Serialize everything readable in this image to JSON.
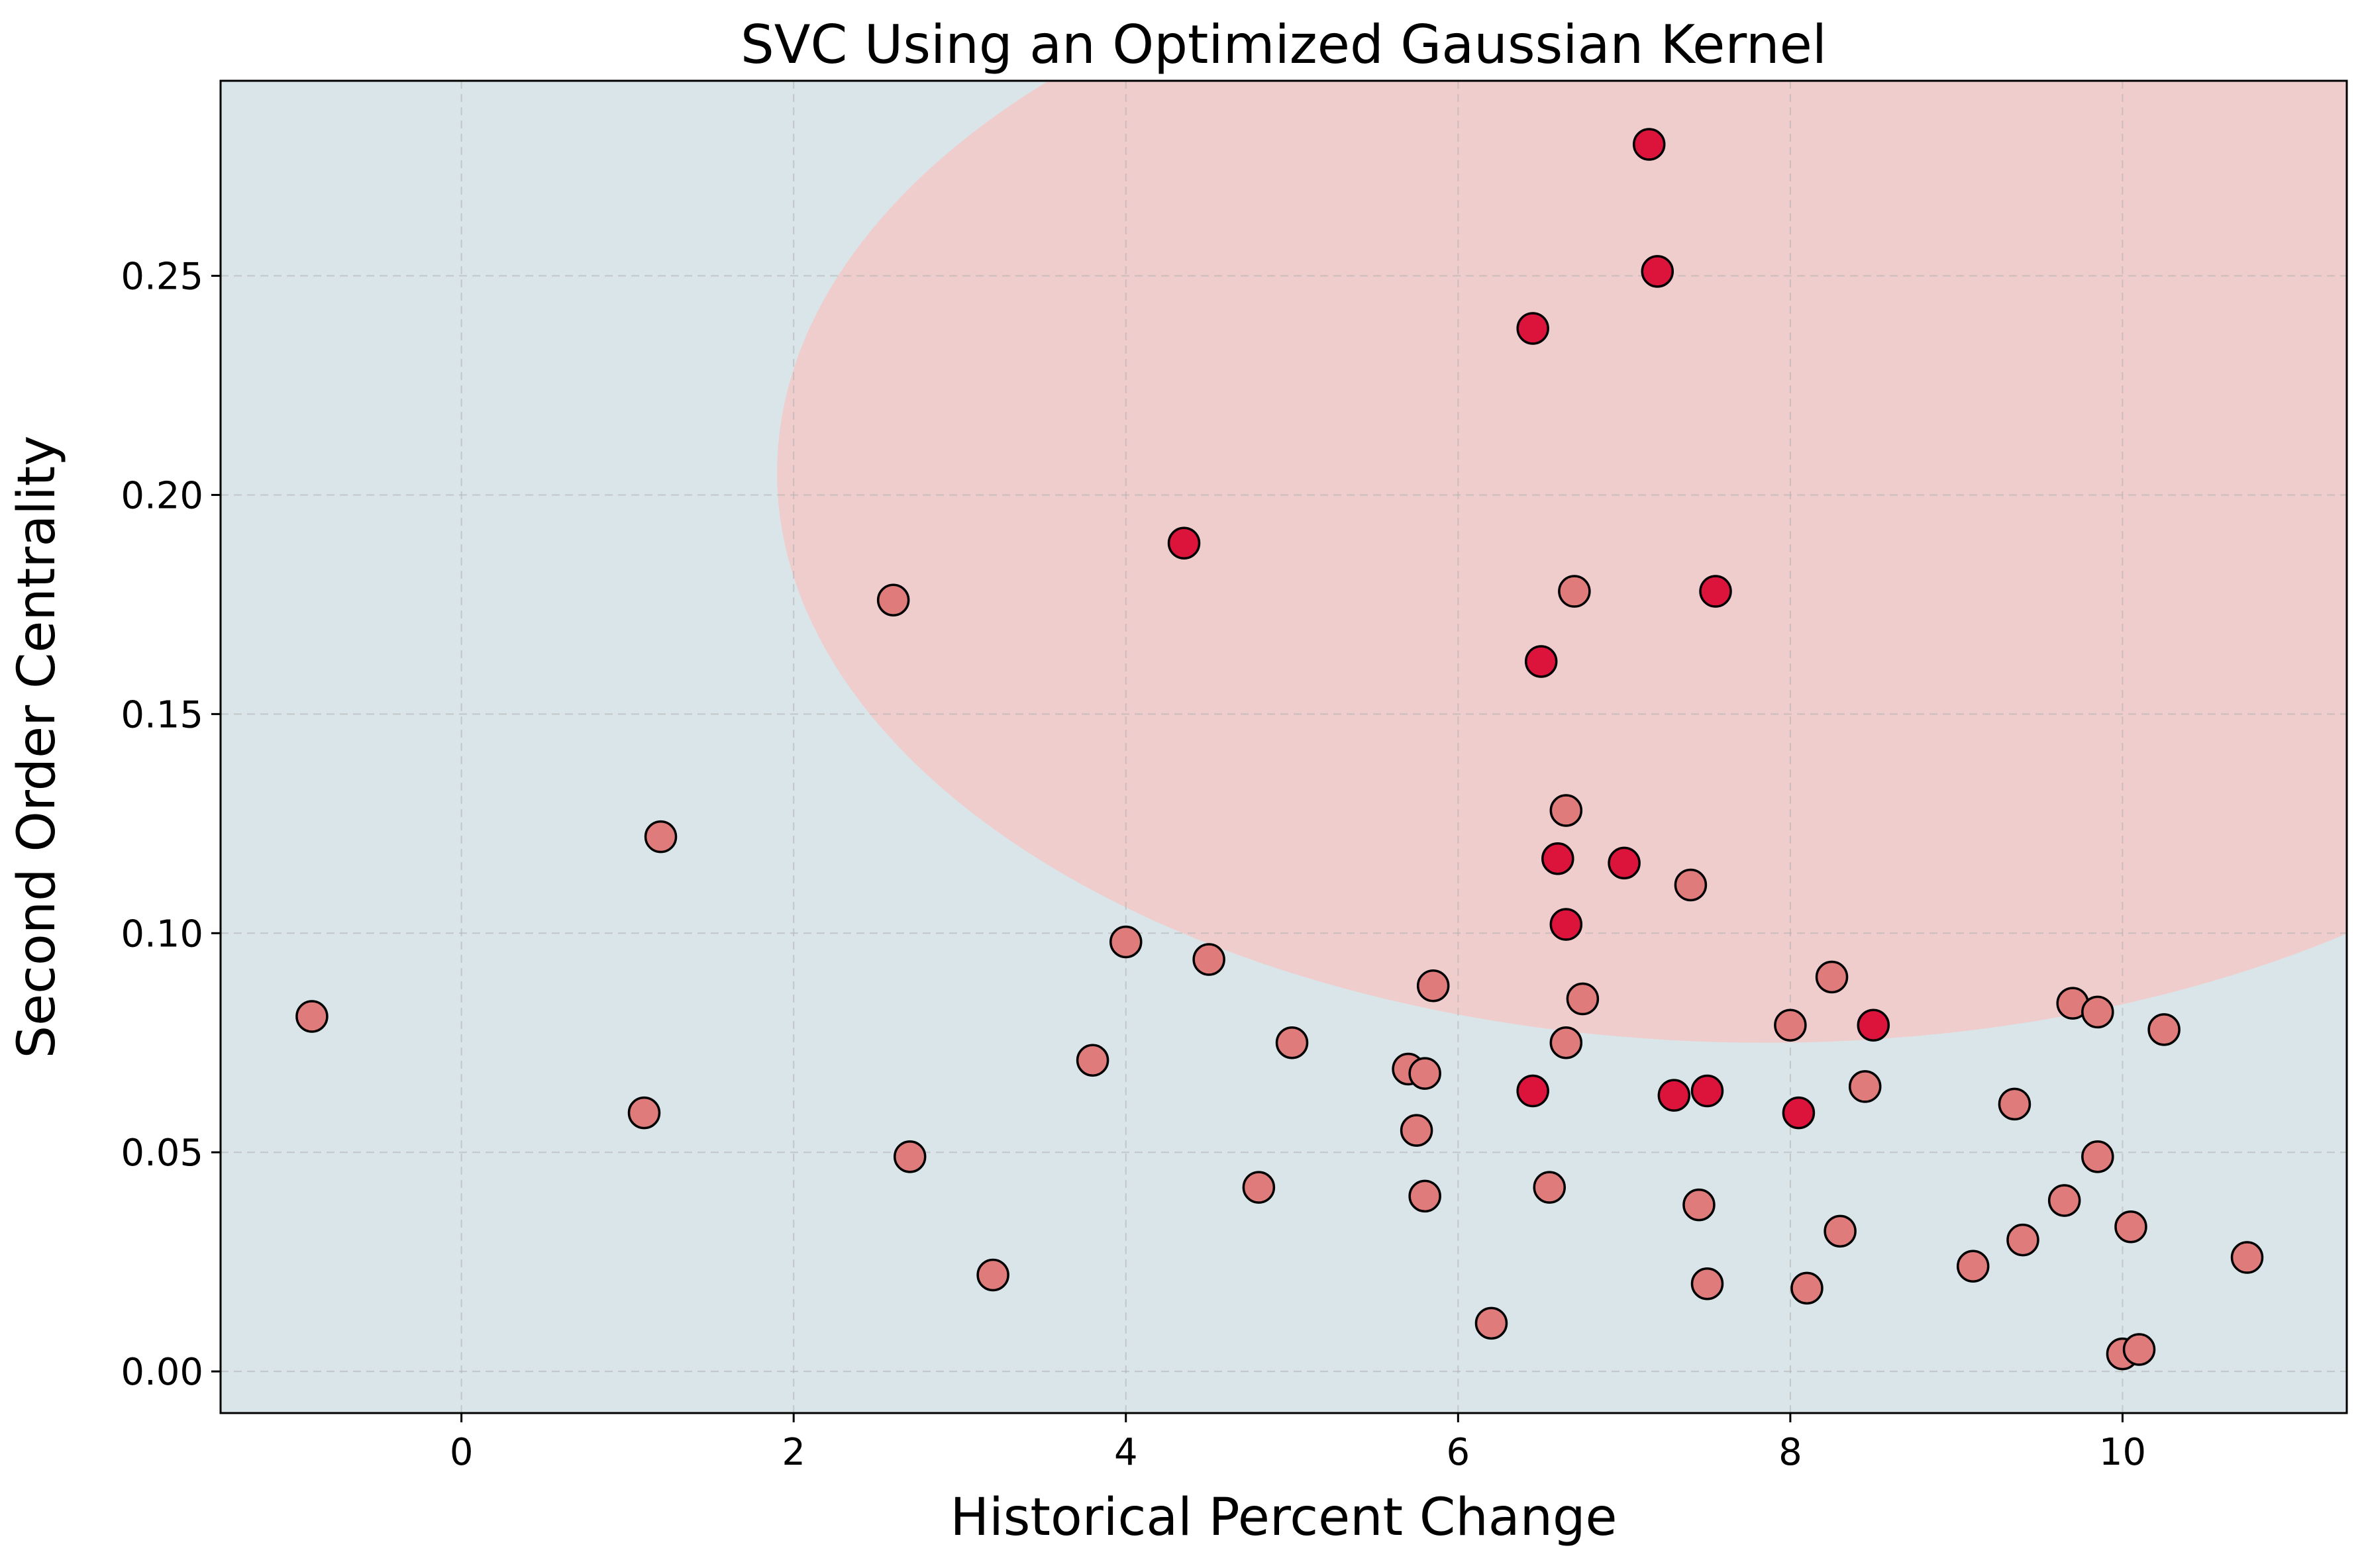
{
  "chart_data": {
    "type": "scatter",
    "title": "SVC Using an Optimized Gaussian Kernel",
    "xlabel": "Historical Percent Change",
    "ylabel": "Second Order Centrality",
    "xlim": [
      -1.45,
      11.35
    ],
    "ylim": [
      -0.0095,
      0.2945
    ],
    "xticks": [
      0,
      2,
      4,
      6,
      8,
      10
    ],
    "yticks": [
      0.0,
      0.05,
      0.1,
      0.15,
      0.2,
      0.25
    ],
    "xtick_labels": [
      "0",
      "2",
      "4",
      "6",
      "8",
      "10"
    ],
    "ytick_labels": [
      "0.00",
      "0.05",
      "0.10",
      "0.15",
      "0.20",
      "0.25"
    ],
    "grid": true,
    "colors": {
      "background_region": "#d9e5e8",
      "decision_region": "#f0cdcd",
      "class_0": "#e07b7b",
      "class_1": "#dc143c",
      "marker_edge": "#000000"
    },
    "decision_region": {
      "shape": "ellipse",
      "center": [
        7.85,
        0.205
      ],
      "semi_axes": [
        5.95,
        0.13
      ]
    },
    "series": [
      {
        "class": 0,
        "points": [
          [
            -0.9,
            0.081
          ],
          [
            1.1,
            0.059
          ],
          [
            1.2,
            0.122
          ],
          [
            2.6,
            0.176
          ],
          [
            2.7,
            0.049
          ],
          [
            3.2,
            0.022
          ],
          [
            3.8,
            0.071
          ],
          [
            4.0,
            0.098
          ],
          [
            4.5,
            0.094
          ],
          [
            4.8,
            0.042
          ],
          [
            5.0,
            0.075
          ],
          [
            5.7,
            0.069
          ],
          [
            5.75,
            0.055
          ],
          [
            5.8,
            0.068
          ],
          [
            5.8,
            0.04
          ],
          [
            5.85,
            0.088
          ],
          [
            6.2,
            0.011
          ],
          [
            6.55,
            0.042
          ],
          [
            6.65,
            0.075
          ],
          [
            6.65,
            0.128
          ],
          [
            6.7,
            0.178
          ],
          [
            6.75,
            0.085
          ],
          [
            7.4,
            0.111
          ],
          [
            7.45,
            0.038
          ],
          [
            7.5,
            0.02
          ],
          [
            8.0,
            0.079
          ],
          [
            8.1,
            0.019
          ],
          [
            8.25,
            0.09
          ],
          [
            8.3,
            0.032
          ],
          [
            8.45,
            0.065
          ],
          [
            9.1,
            0.024
          ],
          [
            9.35,
            0.061
          ],
          [
            9.4,
            0.03
          ],
          [
            9.65,
            0.039
          ],
          [
            9.7,
            0.084
          ],
          [
            9.85,
            0.082
          ],
          [
            9.85,
            0.049
          ],
          [
            10.0,
            0.004
          ],
          [
            10.05,
            0.033
          ],
          [
            10.1,
            0.005
          ],
          [
            10.25,
            0.078
          ],
          [
            10.75,
            0.026
          ]
        ]
      },
      {
        "class": 1,
        "points": [
          [
            4.35,
            0.189
          ],
          [
            6.45,
            0.238
          ],
          [
            6.45,
            0.064
          ],
          [
            6.5,
            0.162
          ],
          [
            6.6,
            0.117
          ],
          [
            6.65,
            0.102
          ],
          [
            7.0,
            0.116
          ],
          [
            7.15,
            0.28
          ],
          [
            7.2,
            0.251
          ],
          [
            7.3,
            0.063
          ],
          [
            7.5,
            0.064
          ],
          [
            7.55,
            0.178
          ],
          [
            8.05,
            0.059
          ],
          [
            8.5,
            0.079
          ]
        ]
      }
    ]
  }
}
